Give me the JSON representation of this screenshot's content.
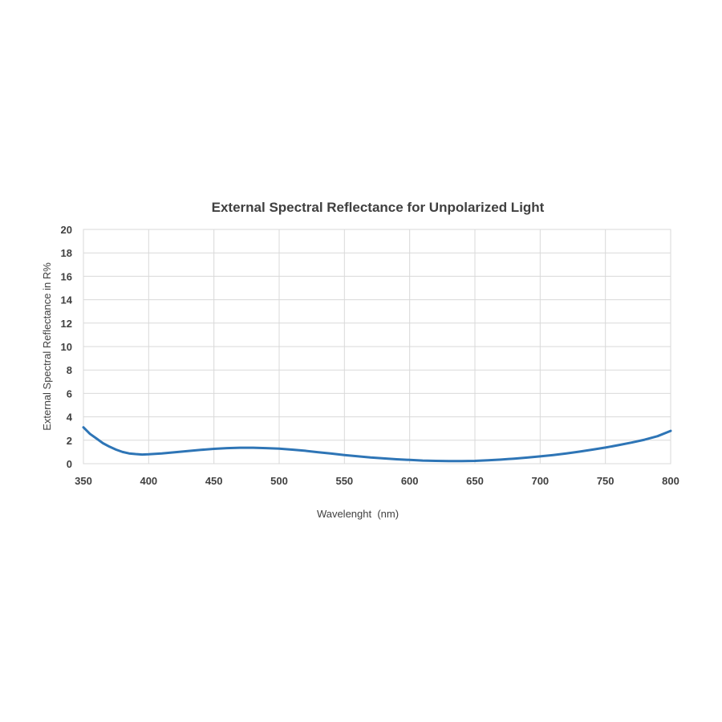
{
  "chart_data": {
    "type": "line",
    "title": "External Spectral Reflectance for Unpolarized Light",
    "xlabel": "Wavelenght  (nm)",
    "ylabel": "External Spectral Reflectance in R%",
    "xlim": [
      350,
      800
    ],
    "ylim": [
      0,
      20
    ],
    "xticks": [
      350,
      400,
      450,
      500,
      550,
      600,
      650,
      700,
      750,
      800
    ],
    "yticks": [
      0,
      2,
      4,
      6,
      8,
      10,
      12,
      14,
      16,
      18,
      20
    ],
    "grid": true,
    "legend": "none",
    "series": [
      {
        "color": "#2e75b6",
        "x": [
          350,
          355,
          360,
          365,
          370,
          375,
          380,
          385,
          390,
          395,
          400,
          410,
          420,
          430,
          440,
          450,
          460,
          470,
          480,
          490,
          500,
          510,
          520,
          530,
          540,
          550,
          560,
          570,
          580,
          590,
          600,
          610,
          620,
          630,
          640,
          650,
          660,
          670,
          680,
          690,
          700,
          710,
          720,
          730,
          740,
          750,
          760,
          770,
          780,
          790,
          800
        ],
        "y": [
          3.1,
          2.55,
          2.15,
          1.75,
          1.45,
          1.2,
          1.0,
          0.88,
          0.82,
          0.78,
          0.8,
          0.88,
          0.98,
          1.08,
          1.18,
          1.27,
          1.33,
          1.36,
          1.36,
          1.33,
          1.28,
          1.2,
          1.1,
          0.98,
          0.86,
          0.74,
          0.63,
          0.53,
          0.45,
          0.38,
          0.32,
          0.27,
          0.24,
          0.22,
          0.22,
          0.24,
          0.29,
          0.35,
          0.43,
          0.52,
          0.62,
          0.74,
          0.88,
          1.03,
          1.2,
          1.38,
          1.58,
          1.8,
          2.05,
          2.35,
          2.8
        ]
      }
    ]
  }
}
